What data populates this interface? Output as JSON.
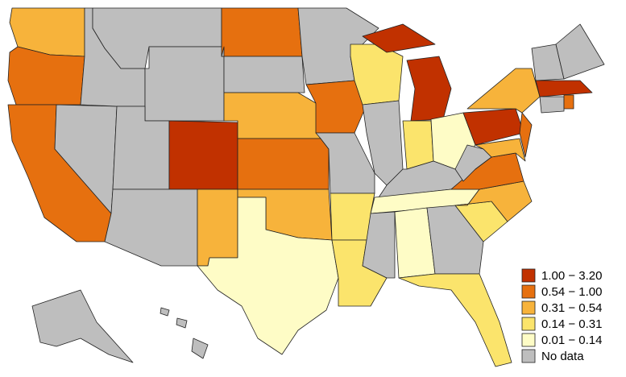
{
  "legend": {
    "items": [
      {
        "label": "1.00 − 3.20",
        "color": "#c13100"
      },
      {
        "label": "0.54 − 1.00",
        "color": "#e6700f"
      },
      {
        "label": "0.31 − 0.54",
        "color": "#f7b33b"
      },
      {
        "label": "0.14 − 0.31",
        "color": "#fbe46c"
      },
      {
        "label": "0.01 − 0.14",
        "color": "#fefcc6"
      },
      {
        "label": "No data",
        "color": "#bebebe"
      }
    ]
  }
}
